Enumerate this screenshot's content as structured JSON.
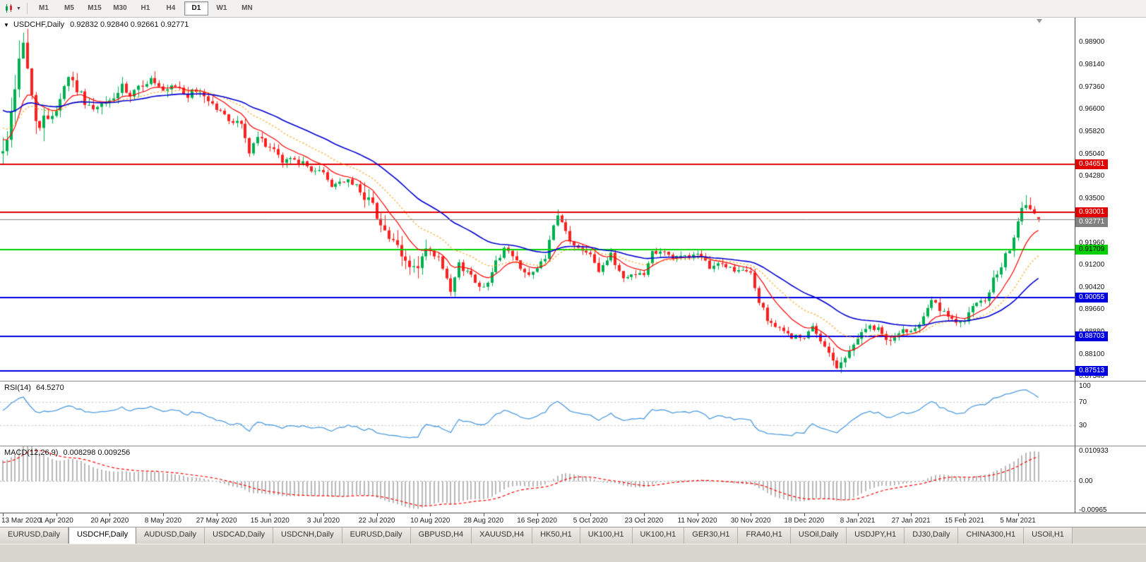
{
  "toolbar": {
    "timeframes": [
      "M1",
      "M5",
      "M15",
      "M30",
      "H1",
      "H4",
      "D1",
      "W1",
      "MN"
    ],
    "active_timeframe": "D1"
  },
  "chart": {
    "title_symbol": "USDCHF,Daily",
    "title_ohlc": "0.92832 0.92840 0.92661 0.92771"
  },
  "chart_data": {
    "type": "candlestick",
    "symbol": "USDCHF",
    "period": "Daily",
    "last_ohlc": {
      "open": 0.92832,
      "high": 0.9284,
      "low": 0.92661,
      "close": 0.92771
    },
    "price_range": {
      "min": 0.8717,
      "max": 0.9974
    },
    "price_axis_labels": [
      "0.98900",
      "0.98140",
      "0.97360",
      "0.96600",
      "0.95820",
      "0.95040",
      "0.94280",
      "0.93500",
      "0.92740",
      "0.91960",
      "0.91200",
      "0.90420",
      "0.89660",
      "0.88880",
      "0.88100",
      "0.87340"
    ],
    "x_axis_labels": [
      "13 Mar 2020",
      "1 Apr 2020",
      "20 Apr 2020",
      "8 May 2020",
      "27 May 2020",
      "15 Jun 2020",
      "3 Jul 2020",
      "22 Jul 2020",
      "10 Aug 2020",
      "28 Aug 2020",
      "16 Sep 2020",
      "5 Oct 2020",
      "23 Oct 2020",
      "11 Nov 2020",
      "30 Nov 2020",
      "18 Dec 2020",
      "8 Jan 2021",
      "27 Jan 2021",
      "15 Feb 2021",
      "5 Mar 2021"
    ],
    "tick_candle_step": 13,
    "candles_count": 253,
    "colors": {
      "up": "#00b050",
      "down": "#ff2020",
      "background": "#ffffff"
    },
    "anchor_closes": [
      [
        0,
        0.9505
      ],
      [
        2,
        0.964
      ],
      [
        4,
        0.9845
      ],
      [
        5,
        0.9875
      ],
      [
        6,
        0.98
      ],
      [
        7,
        0.97
      ],
      [
        9,
        0.959
      ],
      [
        11,
        0.9635
      ],
      [
        13,
        0.966
      ],
      [
        16,
        0.9775
      ],
      [
        19,
        0.9705
      ],
      [
        22,
        0.965
      ],
      [
        26,
        0.9685
      ],
      [
        29,
        0.973
      ],
      [
        31,
        0.9695
      ],
      [
        34,
        0.9745
      ],
      [
        36,
        0.976
      ],
      [
        39,
        0.971
      ],
      [
        42,
        0.9735
      ],
      [
        45,
        0.9705
      ],
      [
        48,
        0.972
      ],
      [
        52,
        0.966
      ],
      [
        55,
        0.962
      ],
      [
        58,
        0.9608
      ],
      [
        60,
        0.9505
      ],
      [
        62,
        0.956
      ],
      [
        65,
        0.9525
      ],
      [
        68,
        0.9475
      ],
      [
        71,
        0.949
      ],
      [
        74,
        0.9455
      ],
      [
        78,
        0.9435
      ],
      [
        80,
        0.9392
      ],
      [
        83,
        0.9412
      ],
      [
        86,
        0.939
      ],
      [
        89,
        0.9345
      ],
      [
        91,
        0.9295
      ],
      [
        93,
        0.9235
      ],
      [
        95,
        0.919
      ],
      [
        98,
        0.9125
      ],
      [
        101,
        0.9105
      ],
      [
        103,
        0.9168
      ],
      [
        106,
        0.914
      ],
      [
        109,
        0.9022
      ],
      [
        111,
        0.9118
      ],
      [
        114,
        0.9082
      ],
      [
        117,
        0.9035
      ],
      [
        119,
        0.9098
      ],
      [
        122,
        0.9178
      ],
      [
        125,
        0.913
      ],
      [
        128,
        0.9082
      ],
      [
        130,
        0.91
      ],
      [
        132,
        0.9148
      ],
      [
        134,
        0.9245
      ],
      [
        135,
        0.9288
      ],
      [
        137,
        0.9232
      ],
      [
        139,
        0.918
      ],
      [
        143,
        0.9162
      ],
      [
        145,
        0.9102
      ],
      [
        148,
        0.915
      ],
      [
        151,
        0.9072
      ],
      [
        154,
        0.9092
      ],
      [
        156,
        0.9082
      ],
      [
        158,
        0.9165
      ],
      [
        161,
        0.9168
      ],
      [
        163,
        0.914
      ],
      [
        166,
        0.9152
      ],
      [
        169,
        0.915
      ],
      [
        172,
        0.9112
      ],
      [
        175,
        0.9122
      ],
      [
        178,
        0.91
      ],
      [
        182,
        0.909
      ],
      [
        184,
        0.899
      ],
      [
        186,
        0.8932
      ],
      [
        189,
        0.8892
      ],
      [
        192,
        0.8872
      ],
      [
        195,
        0.8862
      ],
      [
        197,
        0.8902
      ],
      [
        199,
        0.8852
      ],
      [
        201,
        0.8822
      ],
      [
        203,
        0.8762
      ],
      [
        205,
        0.8792
      ],
      [
        207,
        0.885
      ],
      [
        208,
        0.8862
      ],
      [
        210,
        0.8902
      ],
      [
        213,
        0.8892
      ],
      [
        216,
        0.8852
      ],
      [
        219,
        0.8892
      ],
      [
        221,
        0.8892
      ],
      [
        223,
        0.8922
      ],
      [
        226,
        0.9
      ],
      [
        228,
        0.8962
      ],
      [
        231,
        0.8922
      ],
      [
        234,
        0.8932
      ],
      [
        236,
        0.8972
      ],
      [
        239,
        0.8992
      ],
      [
        241,
        0.9062
      ],
      [
        243,
        0.9102
      ],
      [
        245,
        0.9182
      ],
      [
        247,
        0.9268
      ],
      [
        249,
        0.933
      ],
      [
        250,
        0.9308
      ],
      [
        251,
        0.9285
      ],
      [
        252,
        0.92771
      ]
    ],
    "forced": {
      "4": {
        "high": 0.98955
      },
      "135": {
        "high": 0.931
      },
      "203": {
        "low": 0.8757
      },
      "249": {
        "high": 0.936
      },
      "250": {
        "high": 0.9352
      }
    },
    "moving_averages": [
      {
        "name": "fast-ma",
        "period": 10,
        "color": "#ff0000",
        "dash": [],
        "seed": 0.956,
        "width": 1.2
      },
      {
        "name": "mid-ma",
        "period": 21,
        "color": "#ff9900",
        "dash": [
          2,
          3
        ],
        "seed": 0.96,
        "width": 1.2
      },
      {
        "name": "slow-ma",
        "period": 40,
        "color": "#0000d0",
        "dash": [],
        "seed": 0.966,
        "width": 1.6
      }
    ],
    "hlines": [
      {
        "price": 0.94651,
        "label": "0.94651",
        "color": "#e00000",
        "text_color": "#ffffff"
      },
      {
        "price": 0.93001,
        "label": "0.93001",
        "color": "#e00000",
        "text_color": "#ffffff"
      },
      {
        "price": 0.91709,
        "label": "0.91709",
        "color": "#00d000",
        "text_color": "#000000"
      },
      {
        "price": 0.90055,
        "label": "0.90055",
        "color": "#0000e0",
        "text_color": "#ffffff"
      },
      {
        "price": 0.88703,
        "label": "0.88703",
        "color": "#0000e0",
        "text_color": "#ffffff"
      },
      {
        "price": 0.87513,
        "label": "0.87513",
        "color": "#0000e0",
        "text_color": "#ffffff"
      }
    ],
    "current_price": {
      "price": 0.92771,
      "label": "0.92771",
      "color": "#808080",
      "text_color": "#ffffff"
    },
    "rsi": {
      "label": "RSI(14)",
      "value": "64.5270",
      "period": 14,
      "color": "#4f9be0",
      "levels": [
        {
          "value": 100,
          "label": "100"
        },
        {
          "value": 70,
          "label": "70"
        },
        {
          "value": 30,
          "label": "30"
        }
      ]
    },
    "macd": {
      "label": "MACD(12,26,9)",
      "values": "0.008298 0.009256",
      "fast": 12,
      "slow": 26,
      "signal_period": 9,
      "range": {
        "min": -0.0105,
        "max": 0.0115
      },
      "axis_labels": [
        {
          "value": 0.010933,
          "label": "0.010933"
        },
        {
          "value": 0,
          "label": "0.00"
        },
        {
          "value": -0.00965,
          "label": "-0.00965"
        }
      ],
      "hist_color": "#b8b8b8",
      "signal_color": "#ff0000"
    }
  },
  "tabs": {
    "active_index": 1,
    "items": [
      "EURUSD,Daily",
      "USDCHF,Daily",
      "AUDUSD,Daily",
      "USDCAD,Daily",
      "USDCNH,Daily",
      "EURUSD,Daily",
      "GBPUSD,H4",
      "XAUUSD,H4",
      "HK50,H1",
      "UK100,H1",
      "UK100,H1",
      "GER30,H1",
      "FRA40,H1",
      "USOil,Daily",
      "USDJPY,H1",
      "DJ30,Daily",
      "CHINA300,H1",
      "USOil,H1"
    ]
  }
}
